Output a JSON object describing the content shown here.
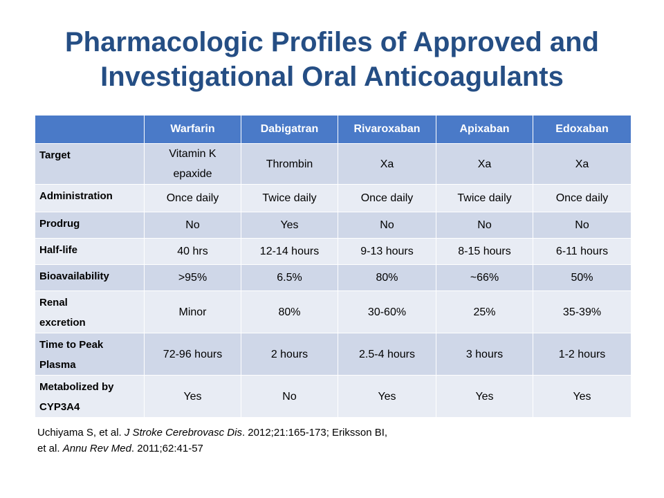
{
  "title": {
    "line1": "Pharmacologic Profiles of Approved and",
    "line2": "Investigational Oral Anticoagulants"
  },
  "table": {
    "corner": "",
    "columns": [
      "Warfarin",
      "Dabigatran",
      "Rivaroxaban",
      "Apixaban",
      "Edoxaban"
    ],
    "rows": [
      {
        "label": "Target",
        "values": [
          "Vitamin K epaxide",
          "Thrombin",
          "Xa",
          "Xa",
          "Xa"
        ]
      },
      {
        "label": "Administration",
        "values": [
          "Once daily",
          "Twice daily",
          "Once daily",
          "Twice daily",
          "Once daily"
        ]
      },
      {
        "label": "Prodrug",
        "values": [
          "No",
          "Yes",
          "No",
          "No",
          "No"
        ]
      },
      {
        "label": "Half-life",
        "values": [
          "40 hrs",
          "12-14 hours",
          "9-13 hours",
          "8-15 hours",
          "6-11 hours"
        ]
      },
      {
        "label": "Bioavailability",
        "values": [
          ">95%",
          "6.5%",
          "80%",
          "~66%",
          "50%"
        ]
      },
      {
        "label": "Renal excretion",
        "values": [
          "Minor",
          "80%",
          "30-60%",
          "25%",
          "35-39%"
        ]
      },
      {
        "label": "Time to Peak Plasma",
        "values": [
          "72-96 hours",
          "2 hours",
          "2.5-4 hours",
          "3 hours",
          "1-2 hours"
        ]
      },
      {
        "label": "Metabolized by CYP3A4",
        "values": [
          "Yes",
          "No",
          "Yes",
          "Yes",
          "Yes"
        ]
      }
    ]
  },
  "citation": {
    "part1": "Uchiyama S, et al. ",
    "journal1": "J Stroke Cerebrovasc Dis",
    "part2": ". 2012;21:165-173; Eriksson BI,",
    "part3": "et al. ",
    "journal2": "Annu Rev Med",
    "part4": ". 2011;62:41-57"
  },
  "colors": {
    "title": "#254e84",
    "header_bg": "#4a7ac8",
    "row_dark": "#cfd7e8",
    "row_light": "#e8ecf4"
  }
}
